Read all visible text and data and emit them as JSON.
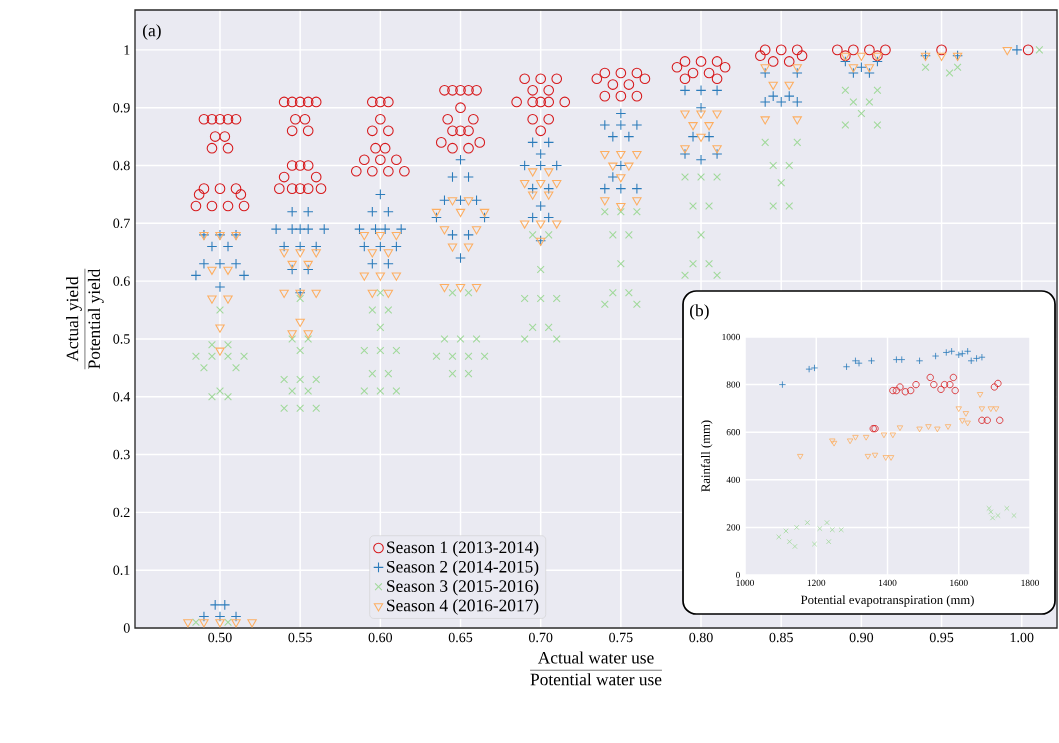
{
  "chart_data": [
    {
      "type": "scatter",
      "xlabel": "\\frac{\\mbox{Actual water use}}{\\mbox{Potential water use}}",
      "ylabel": "\\frac{\\mbox{Actual yield}}{\\mbox{Potential yield}}",
      "annotations": [
        "(a)"
      ],
      "xlim": [
        0.447,
        1.022
      ],
      "ylim": [
        0,
        1.069
      ],
      "xticks": [
        {
          "value": 0.5,
          "label": "0.50"
        },
        {
          "value": 0.55,
          "label": "0.55"
        },
        {
          "value": 0.6,
          "label": "0.60"
        },
        {
          "value": 0.65,
          "label": "0.65"
        },
        {
          "value": 0.7,
          "label": "0.70"
        },
        {
          "value": 0.75,
          "label": "0.75"
        },
        {
          "value": 0.8,
          "label": "0.80"
        },
        {
          "value": 0.85,
          "label": "0.85"
        },
        {
          "value": 0.9,
          "label": "0.90"
        },
        {
          "value": 0.95,
          "label": "0.95"
        },
        {
          "value": 1.0,
          "label": "1.00"
        }
      ],
      "yticks": [
        0,
        0.1,
        0.2,
        0.3,
        0.4,
        0.5,
        0.6,
        0.7,
        0.8,
        0.9,
        1
      ],
      "grid": true,
      "legend": "bottom",
      "series": [
        {
          "name": "Season 1 (2013-2014)",
          "color": "#d7191c",
          "marker": "circle",
          "x": [
            0.49,
            0.495,
            0.5,
            0.505,
            0.51,
            0.497,
            0.503,
            0.495,
            0.505,
            0.49,
            0.5,
            0.51,
            0.487,
            0.513,
            0.485,
            0.495,
            0.505,
            0.515,
            0.54,
            0.545,
            0.55,
            0.555,
            0.56,
            0.547,
            0.553,
            0.545,
            0.555,
            0.545,
            0.55,
            0.555,
            0.54,
            0.56,
            0.537,
            0.545,
            0.55,
            0.555,
            0.563,
            0.595,
            0.6,
            0.605,
            0.6,
            0.595,
            0.605,
            0.597,
            0.603,
            0.59,
            0.6,
            0.61,
            0.585,
            0.595,
            0.605,
            0.615,
            0.64,
            0.645,
            0.65,
            0.655,
            0.66,
            0.65,
            0.642,
            0.658,
            0.645,
            0.65,
            0.655,
            0.638,
            0.662,
            0.645,
            0.655,
            0.69,
            0.7,
            0.71,
            0.695,
            0.705,
            0.685,
            0.695,
            0.7,
            0.705,
            0.715,
            0.695,
            0.705,
            0.7,
            0.74,
            0.75,
            0.76,
            0.735,
            0.765,
            0.745,
            0.755,
            0.74,
            0.75,
            0.76,
            0.79,
            0.8,
            0.81,
            0.785,
            0.815,
            0.795,
            0.805,
            0.79,
            0.81,
            0.84,
            0.85,
            0.86,
            0.837,
            0.863,
            0.845,
            0.855,
            0.885,
            0.895,
            0.905,
            0.915,
            0.89,
            0.91,
            0.95,
            1.004
          ],
          "values": [
            0.88,
            0.88,
            0.88,
            0.88,
            0.88,
            0.85,
            0.85,
            0.83,
            0.83,
            0.76,
            0.76,
            0.76,
            0.75,
            0.75,
            0.73,
            0.73,
            0.73,
            0.73,
            0.91,
            0.91,
            0.91,
            0.91,
            0.91,
            0.88,
            0.88,
            0.86,
            0.86,
            0.8,
            0.8,
            0.8,
            0.78,
            0.78,
            0.76,
            0.76,
            0.76,
            0.76,
            0.76,
            0.91,
            0.91,
            0.91,
            0.88,
            0.86,
            0.86,
            0.83,
            0.83,
            0.81,
            0.81,
            0.81,
            0.79,
            0.79,
            0.79,
            0.79,
            0.93,
            0.93,
            0.93,
            0.93,
            0.93,
            0.9,
            0.88,
            0.88,
            0.86,
            0.86,
            0.86,
            0.84,
            0.84,
            0.83,
            0.83,
            0.95,
            0.95,
            0.95,
            0.93,
            0.93,
            0.91,
            0.91,
            0.91,
            0.91,
            0.91,
            0.88,
            0.88,
            0.86,
            0.96,
            0.96,
            0.96,
            0.95,
            0.95,
            0.94,
            0.94,
            0.92,
            0.92,
            0.92,
            0.98,
            0.98,
            0.98,
            0.97,
            0.97,
            0.96,
            0.96,
            0.95,
            0.95,
            1.0,
            1.0,
            1.0,
            0.99,
            0.99,
            0.98,
            0.98,
            1.0,
            1.0,
            1.0,
            1.0,
            0.99,
            0.99,
            1.0,
            1.0
          ]
        },
        {
          "name": "Season 2 (2014-2015)",
          "color": "#2b7bba",
          "marker": "plus",
          "x": [
            0.497,
            0.503,
            0.49,
            0.5,
            0.51,
            0.49,
            0.5,
            0.51,
            0.495,
            0.505,
            0.49,
            0.5,
            0.51,
            0.485,
            0.515,
            0.5,
            0.545,
            0.555,
            0.535,
            0.545,
            0.55,
            0.555,
            0.565,
            0.54,
            0.55,
            0.56,
            0.545,
            0.555,
            0.55,
            0.6,
            0.595,
            0.605,
            0.587,
            0.597,
            0.603,
            0.613,
            0.59,
            0.6,
            0.61,
            0.595,
            0.605,
            0.65,
            0.645,
            0.655,
            0.64,
            0.65,
            0.66,
            0.635,
            0.665,
            0.645,
            0.655,
            0.65,
            0.695,
            0.705,
            0.7,
            0.69,
            0.7,
            0.71,
            0.695,
            0.705,
            0.7,
            0.695,
            0.705,
            0.7,
            0.75,
            0.74,
            0.75,
            0.76,
            0.745,
            0.755,
            0.75,
            0.745,
            0.74,
            0.75,
            0.76,
            0.79,
            0.8,
            0.81,
            0.8,
            0.795,
            0.805,
            0.79,
            0.81,
            0.8,
            0.84,
            0.86,
            0.845,
            0.855,
            0.84,
            0.85,
            0.86,
            0.89,
            0.91,
            0.9,
            0.895,
            0.905,
            0.94,
            0.96,
            0.997
          ],
          "values": [
            0.04,
            0.04,
            0.02,
            0.02,
            0.02,
            0.68,
            0.68,
            0.68,
            0.66,
            0.66,
            0.63,
            0.63,
            0.63,
            0.61,
            0.61,
            0.59,
            0.72,
            0.72,
            0.69,
            0.69,
            0.69,
            0.69,
            0.69,
            0.66,
            0.66,
            0.66,
            0.62,
            0.62,
            0.58,
            0.75,
            0.72,
            0.72,
            0.69,
            0.69,
            0.69,
            0.69,
            0.66,
            0.66,
            0.66,
            0.63,
            0.63,
            0.81,
            0.78,
            0.78,
            0.74,
            0.74,
            0.74,
            0.71,
            0.71,
            0.68,
            0.68,
            0.64,
            0.84,
            0.84,
            0.82,
            0.8,
            0.8,
            0.8,
            0.76,
            0.76,
            0.73,
            0.71,
            0.71,
            0.67,
            0.89,
            0.87,
            0.87,
            0.87,
            0.85,
            0.85,
            0.8,
            0.78,
            0.76,
            0.76,
            0.76,
            0.93,
            0.93,
            0.93,
            0.9,
            0.85,
            0.85,
            0.82,
            0.82,
            0.81,
            0.96,
            0.96,
            0.92,
            0.92,
            0.91,
            0.91,
            0.91,
            0.98,
            0.98,
            0.97,
            0.96,
            0.96,
            0.99,
            0.99,
            1.0
          ]
        },
        {
          "name": "Season 3 (2015-2016)",
          "color": "#a1d99b",
          "marker": "cross",
          "x": [
            0.485,
            0.505,
            0.5,
            0.495,
            0.505,
            0.485,
            0.495,
            0.505,
            0.515,
            0.49,
            0.51,
            0.5,
            0.495,
            0.505,
            0.55,
            0.545,
            0.555,
            0.55,
            0.54,
            0.55,
            0.56,
            0.545,
            0.555,
            0.54,
            0.55,
            0.56,
            0.6,
            0.595,
            0.605,
            0.6,
            0.59,
            0.6,
            0.61,
            0.595,
            0.605,
            0.59,
            0.6,
            0.61,
            0.645,
            0.655,
            0.64,
            0.65,
            0.66,
            0.635,
            0.645,
            0.655,
            0.665,
            0.645,
            0.655,
            0.695,
            0.705,
            0.7,
            0.69,
            0.7,
            0.71,
            0.695,
            0.705,
            0.69,
            0.71,
            0.74,
            0.75,
            0.76,
            0.745,
            0.755,
            0.75,
            0.745,
            0.755,
            0.74,
            0.76,
            0.79,
            0.8,
            0.81,
            0.795,
            0.805,
            0.8,
            0.795,
            0.805,
            0.79,
            0.81,
            0.84,
            0.86,
            0.845,
            0.855,
            0.85,
            0.845,
            0.855,
            0.89,
            0.91,
            0.895,
            0.905,
            0.9,
            0.89,
            0.91,
            0.94,
            0.96,
            0.955,
            1.011
          ],
          "values": [
            0.01,
            0.01,
            0.55,
            0.49,
            0.49,
            0.47,
            0.47,
            0.47,
            0.47,
            0.45,
            0.45,
            0.41,
            0.4,
            0.4,
            0.57,
            0.5,
            0.5,
            0.48,
            0.43,
            0.43,
            0.43,
            0.41,
            0.41,
            0.38,
            0.38,
            0.38,
            0.58,
            0.55,
            0.55,
            0.52,
            0.48,
            0.48,
            0.48,
            0.44,
            0.44,
            0.41,
            0.41,
            0.41,
            0.58,
            0.58,
            0.5,
            0.5,
            0.5,
            0.47,
            0.47,
            0.47,
            0.47,
            0.44,
            0.44,
            0.68,
            0.68,
            0.62,
            0.57,
            0.57,
            0.57,
            0.52,
            0.52,
            0.5,
            0.5,
            0.72,
            0.72,
            0.72,
            0.68,
            0.68,
            0.63,
            0.58,
            0.58,
            0.56,
            0.56,
            0.78,
            0.78,
            0.78,
            0.73,
            0.73,
            0.68,
            0.63,
            0.63,
            0.61,
            0.61,
            0.84,
            0.84,
            0.8,
            0.8,
            0.77,
            0.73,
            0.73,
            0.93,
            0.93,
            0.91,
            0.91,
            0.89,
            0.87,
            0.87,
            0.97,
            0.97,
            0.96,
            1.0
          ]
        },
        {
          "name": "Season 4 (2016-2017)",
          "color": "#fdae61",
          "marker": "triangle",
          "x": [
            0.48,
            0.49,
            0.5,
            0.51,
            0.52,
            0.49,
            0.5,
            0.51,
            0.495,
            0.505,
            0.495,
            0.505,
            0.5,
            0.5,
            0.54,
            0.55,
            0.56,
            0.545,
            0.555,
            0.54,
            0.55,
            0.56,
            0.55,
            0.545,
            0.555,
            0.59,
            0.6,
            0.61,
            0.595,
            0.605,
            0.59,
            0.6,
            0.61,
            0.595,
            0.605,
            0.645,
            0.655,
            0.635,
            0.65,
            0.665,
            0.64,
            0.66,
            0.645,
            0.655,
            0.64,
            0.65,
            0.66,
            0.695,
            0.705,
            0.69,
            0.7,
            0.71,
            0.695,
            0.705,
            0.69,
            0.7,
            0.71,
            0.7,
            0.74,
            0.75,
            0.76,
            0.745,
            0.755,
            0.75,
            0.74,
            0.76,
            0.75,
            0.79,
            0.8,
            0.81,
            0.795,
            0.805,
            0.8,
            0.79,
            0.81,
            0.84,
            0.86,
            0.845,
            0.855,
            0.84,
            0.86,
            0.89,
            0.9,
            0.91,
            0.895,
            0.905,
            0.94,
            0.95,
            0.96,
            0.991
          ],
          "values": [
            0.01,
            0.01,
            0.01,
            0.01,
            0.01,
            0.68,
            0.68,
            0.68,
            0.62,
            0.62,
            0.57,
            0.57,
            0.52,
            0.48,
            0.65,
            0.65,
            0.65,
            0.63,
            0.63,
            0.58,
            0.58,
            0.58,
            0.53,
            0.51,
            0.51,
            0.68,
            0.68,
            0.68,
            0.65,
            0.65,
            0.61,
            0.61,
            0.61,
            0.58,
            0.58,
            0.74,
            0.74,
            0.72,
            0.72,
            0.72,
            0.69,
            0.69,
            0.66,
            0.66,
            0.59,
            0.59,
            0.59,
            0.79,
            0.79,
            0.77,
            0.77,
            0.77,
            0.75,
            0.75,
            0.7,
            0.7,
            0.7,
            0.67,
            0.82,
            0.82,
            0.82,
            0.8,
            0.8,
            0.78,
            0.74,
            0.74,
            0.73,
            0.89,
            0.89,
            0.89,
            0.87,
            0.87,
            0.85,
            0.83,
            0.83,
            0.97,
            0.97,
            0.94,
            0.94,
            0.88,
            0.88,
            0.99,
            0.99,
            0.99,
            0.97,
            0.97,
            0.99,
            0.99,
            0.99,
            1.0
          ]
        }
      ]
    },
    {
      "type": "scatter",
      "xlabel": "Potential evapotranspiration (mm)",
      "ylabel": "Rainfall (mm)",
      "annotations": [
        "(b)"
      ],
      "xlim": [
        1000,
        1800
      ],
      "ylim": [
        0,
        1000
      ],
      "xticks": [
        1000,
        1200,
        1400,
        1600,
        1800
      ],
      "yticks": [
        0,
        200,
        400,
        600,
        800,
        1000
      ],
      "grid": true,
      "series": [
        {
          "color": "#d7191c",
          "marker": "circle",
          "x": [
            1360,
            1365,
            1415,
            1425,
            1435,
            1450,
            1465,
            1480,
            1520,
            1530,
            1550,
            1560,
            1575,
            1585,
            1590,
            1665,
            1680,
            1700,
            1710,
            1715
          ],
          "values": [
            615,
            615,
            775,
            775,
            790,
            770,
            775,
            800,
            830,
            800,
            780,
            800,
            800,
            830,
            775,
            650,
            650,
            790,
            805,
            650
          ]
        },
        {
          "color": "#2b7bba",
          "marker": "plus",
          "x": [
            1105,
            1180,
            1195,
            1285,
            1310,
            1320,
            1355,
            1425,
            1440,
            1490,
            1535,
            1565,
            1580,
            1600,
            1610,
            1625,
            1635,
            1650,
            1665
          ],
          "values": [
            800,
            865,
            870,
            875,
            900,
            890,
            900,
            905,
            905,
            900,
            920,
            935,
            940,
            925,
            930,
            940,
            900,
            910,
            915
          ]
        },
        {
          "color": "#a1d99b",
          "marker": "cross",
          "x": [
            1095,
            1115,
            1125,
            1140,
            1145,
            1175,
            1195,
            1210,
            1235,
            1245,
            1270,
            1230,
            1685,
            1695,
            1710,
            1735,
            1755,
            1690
          ],
          "values": [
            160,
            185,
            140,
            120,
            200,
            220,
            130,
            195,
            140,
            190,
            190,
            220,
            280,
            240,
            250,
            280,
            250,
            265
          ]
        },
        {
          "color": "#fdae61",
          "marker": "triangle",
          "x": [
            1155,
            1245,
            1250,
            1295,
            1310,
            1340,
            1345,
            1365,
            1390,
            1395,
            1410,
            1415,
            1435,
            1490,
            1515,
            1540,
            1570,
            1600,
            1610,
            1620,
            1625,
            1660,
            1665,
            1690,
            1705
          ],
          "values": [
            500,
            565,
            555,
            565,
            580,
            580,
            500,
            505,
            590,
            495,
            495,
            590,
            620,
            615,
            625,
            615,
            625,
            700,
            650,
            680,
            640,
            760,
            700,
            700,
            700
          ]
        }
      ]
    }
  ]
}
